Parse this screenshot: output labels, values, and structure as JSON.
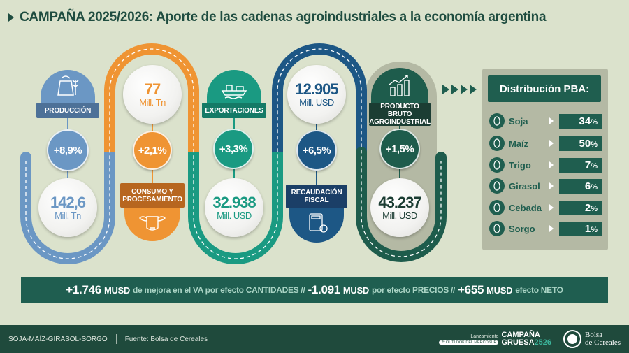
{
  "title": "CAMPAÑA 2025/2026: Aporte de las cadenas agroindustriales a la economía argentina",
  "colors": {
    "background": "#dbe2cc",
    "produccion": "#6b97c4",
    "consumo": "#ef9433",
    "exportaciones": "#1a9a82",
    "recaudacion": "#1d5785",
    "pba": "#1e5c4c"
  },
  "stages": {
    "produccion": {
      "label": "PRODUCCIÓN",
      "change": "+8,9%",
      "value": "142,6",
      "unit": "Mill. Tn",
      "icon": "grain-sack-icon"
    },
    "consumo": {
      "label1": "CONSUMO Y",
      "label2": "PROCESAMIENTO",
      "change": "+2,1%",
      "value": "77",
      "unit": "Mill. Tn",
      "icon": "cow-icon"
    },
    "exportaciones": {
      "label": "EXPORTACIONES",
      "change": "+3,3%",
      "value": "32.938",
      "unit": "Mill. USD",
      "icon": "ship-icon"
    },
    "recaudacion": {
      "label1": "RECAUDACIÓN",
      "label2": "FISCAL",
      "change": "+6,5%",
      "value": "12.905",
      "unit": "Mill. USD",
      "icon": "calculator-icon"
    },
    "pba": {
      "label1": "PRODUCTO BRUTO",
      "label2": "AGROINDUSTRIAL",
      "change": "+1,5%",
      "value": "43.237",
      "unit": "Mill. USD",
      "icon": "growth-chart-icon"
    }
  },
  "distribution": {
    "title": "Distribución PBA:",
    "items": [
      {
        "name": "Soja",
        "value": "34",
        "pct": "%",
        "icon": "soybean-icon"
      },
      {
        "name": "Maíz",
        "value": "50",
        "pct": "%",
        "icon": "corn-icon"
      },
      {
        "name": "Trigo",
        "value": "7",
        "pct": "%",
        "icon": "wheat-icon"
      },
      {
        "name": "Girasol",
        "value": "6",
        "pct": "%",
        "icon": "sunflower-icon"
      },
      {
        "name": "Cebada",
        "value": "2",
        "pct": "%",
        "icon": "barley-icon"
      },
      {
        "name": "Sorgo",
        "value": "1",
        "pct": "%",
        "icon": "sorghum-icon"
      }
    ]
  },
  "summary": {
    "n1": "+1.746",
    "u1": "MUSD",
    "t1": "de mejora en el VA por efecto CANTIDADES //",
    "n2": "-1.091",
    "u2": "MUSD",
    "t2": "por efecto PRECIOS //",
    "n3": "+655",
    "u3": "MUSD",
    "t3": "efecto NETO"
  },
  "footer": {
    "crops": "SOJA-MAÍZ-GIRASOL-SORGO",
    "source": "Fuente: Bolsa de Cereales",
    "launch": "Lanzamiento",
    "campaign1": "CAMPAÑA",
    "outlook": "2º OUTLOOK DEL MERCOSUR",
    "campaign2": "GRUESA",
    "year": "2526",
    "org1": "Bolsa",
    "org2": "de Cereales"
  }
}
